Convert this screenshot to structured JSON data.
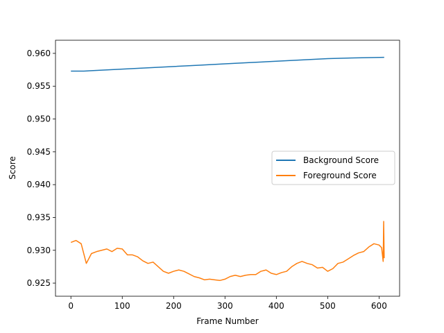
{
  "chart_data": {
    "type": "line",
    "xlabel": "Frame Number",
    "ylabel": "Score",
    "xlim": [
      -30,
      640
    ],
    "ylim": [
      0.923,
      0.962
    ],
    "x_ticks": [
      0,
      100,
      200,
      300,
      400,
      500,
      600
    ],
    "y_ticks": [
      0.925,
      0.93,
      0.935,
      0.94,
      0.945,
      0.95,
      0.955,
      0.96
    ],
    "y_tick_labels": [
      "0.925",
      "0.930",
      "0.935",
      "0.940",
      "0.945",
      "0.950",
      "0.955",
      "0.960"
    ],
    "grid": false,
    "legend_position": "center-right",
    "series": [
      {
        "name": "Background Score",
        "color": "#1f77b4",
        "x": [
          0,
          25,
          50,
          100,
          150,
          200,
          250,
          300,
          350,
          400,
          450,
          500,
          550,
          610
        ],
        "y": [
          0.9573,
          0.9573,
          0.9574,
          0.9576,
          0.9578,
          0.958,
          0.9582,
          0.9584,
          0.9586,
          0.9588,
          0.959,
          0.9592,
          0.9593,
          0.9594
        ]
      },
      {
        "name": "Foreground Score",
        "color": "#ff7f0e",
        "x": [
          0,
          10,
          20,
          30,
          40,
          50,
          60,
          70,
          80,
          90,
          100,
          110,
          120,
          130,
          140,
          150,
          160,
          170,
          180,
          190,
          200,
          210,
          220,
          230,
          240,
          250,
          260,
          270,
          280,
          290,
          300,
          310,
          320,
          330,
          340,
          350,
          360,
          370,
          380,
          390,
          400,
          410,
          420,
          430,
          440,
          450,
          460,
          470,
          480,
          490,
          500,
          510,
          520,
          530,
          540,
          550,
          560,
          570,
          580,
          590,
          600,
          605,
          608,
          609,
          610
        ],
        "y": [
          0.9312,
          0.9315,
          0.931,
          0.928,
          0.9295,
          0.9298,
          0.93,
          0.9302,
          0.9298,
          0.9303,
          0.9302,
          0.9293,
          0.9293,
          0.929,
          0.9284,
          0.928,
          0.9282,
          0.9275,
          0.9268,
          0.9265,
          0.9268,
          0.927,
          0.9268,
          0.9264,
          0.926,
          0.9258,
          0.9255,
          0.9256,
          0.9255,
          0.9254,
          0.9256,
          0.926,
          0.9262,
          0.926,
          0.9262,
          0.9263,
          0.9263,
          0.9268,
          0.927,
          0.9265,
          0.9263,
          0.9266,
          0.9268,
          0.9275,
          0.928,
          0.9283,
          0.928,
          0.9278,
          0.9273,
          0.9274,
          0.9268,
          0.9272,
          0.928,
          0.9282,
          0.9287,
          0.9292,
          0.9296,
          0.9298,
          0.9305,
          0.931,
          0.9308,
          0.9304,
          0.9283,
          0.9344,
          0.9288
        ]
      }
    ]
  }
}
